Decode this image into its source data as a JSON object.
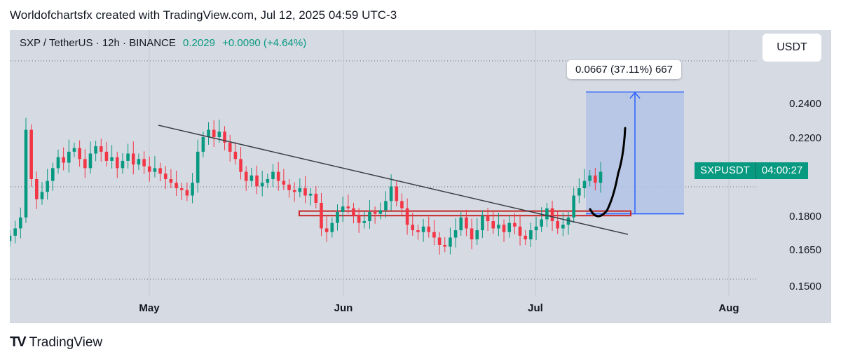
{
  "header": {
    "text": "Worldofchartsfx created with TradingView.com, Jul 12, 2025 04:59 UTC-3"
  },
  "toolbar": {
    "symbol": "SXP / TetherUS · 12h · BINANCE",
    "price": "0.2029",
    "change": "+0.0090 (+4.64%)",
    "currency_button": "USDT"
  },
  "measure": {
    "label": "0.0667 (37.11%) 667"
  },
  "ticker_tag": {
    "symbol": "SXPUSDT",
    "countdown": "04:00:27"
  },
  "footer": {
    "brand": "TradingView",
    "logo": "TV"
  },
  "colors": {
    "up": "#089981",
    "down": "#f23645",
    "background": "#d6dae3",
    "measure_fill": "#b3c3e6",
    "measure_line": "#2962ff",
    "zone": "#c62828"
  },
  "chart_data": {
    "type": "candlestick",
    "title": "SXP / TetherUS · 12h · BINANCE",
    "ylabel": "",
    "xlabel": "",
    "ylim": [
      0.145,
      0.265
    ],
    "y_ticks": [
      "0.2400",
      "0.2200",
      "0.1800",
      "0.1650",
      "0.1500"
    ],
    "x_ticks": [
      "May",
      "Jun",
      "Jul",
      "Aug"
    ],
    "series": [
      {
        "name": "SXPUSDT",
        "closes": [
          0.168,
          0.172,
          0.178,
          0.226,
          0.199,
          0.188,
          0.192,
          0.198,
          0.205,
          0.211,
          0.208,
          0.214,
          0.216,
          0.21,
          0.205,
          0.213,
          0.217,
          0.214,
          0.209,
          0.211,
          0.205,
          0.209,
          0.213,
          0.207,
          0.21,
          0.206,
          0.203,
          0.205,
          0.202,
          0.199,
          0.197,
          0.194,
          0.193,
          0.19,
          0.197,
          0.214,
          0.222,
          0.226,
          0.222,
          0.225,
          0.219,
          0.214,
          0.21,
          0.203,
          0.198,
          0.201,
          0.195,
          0.197,
          0.199,
          0.203,
          0.198,
          0.196,
          0.193,
          0.192,
          0.194,
          0.19,
          0.191,
          0.186,
          0.172,
          0.17,
          0.175,
          0.181,
          0.184,
          0.183,
          0.179,
          0.175,
          0.176,
          0.181,
          0.18,
          0.182,
          0.187,
          0.195,
          0.187,
          0.183,
          0.174,
          0.171,
          0.17,
          0.173,
          0.17,
          0.167,
          0.163,
          0.162,
          0.167,
          0.171,
          0.178,
          0.172,
          0.166,
          0.171,
          0.179,
          0.176,
          0.172,
          0.174,
          0.17,
          0.175,
          0.173,
          0.168,
          0.166,
          0.171,
          0.173,
          0.177,
          0.183,
          0.176,
          0.172,
          0.174,
          0.178,
          0.19,
          0.194,
          0.198,
          0.201,
          0.197,
          0.203
        ]
      }
    ],
    "annotations": [
      {
        "type": "trendline",
        "from": [
          0.227,
          "apr"
        ],
        "to": [
          0.171,
          "jul"
        ]
      },
      {
        "type": "support_zone",
        "price_low": 0.179,
        "price_high": 0.1815
      },
      {
        "type": "measure",
        "from": 0.18,
        "to": 0.2467,
        "label": "0.0667 (37.11%) 667"
      },
      {
        "type": "projection_curve"
      }
    ]
  }
}
